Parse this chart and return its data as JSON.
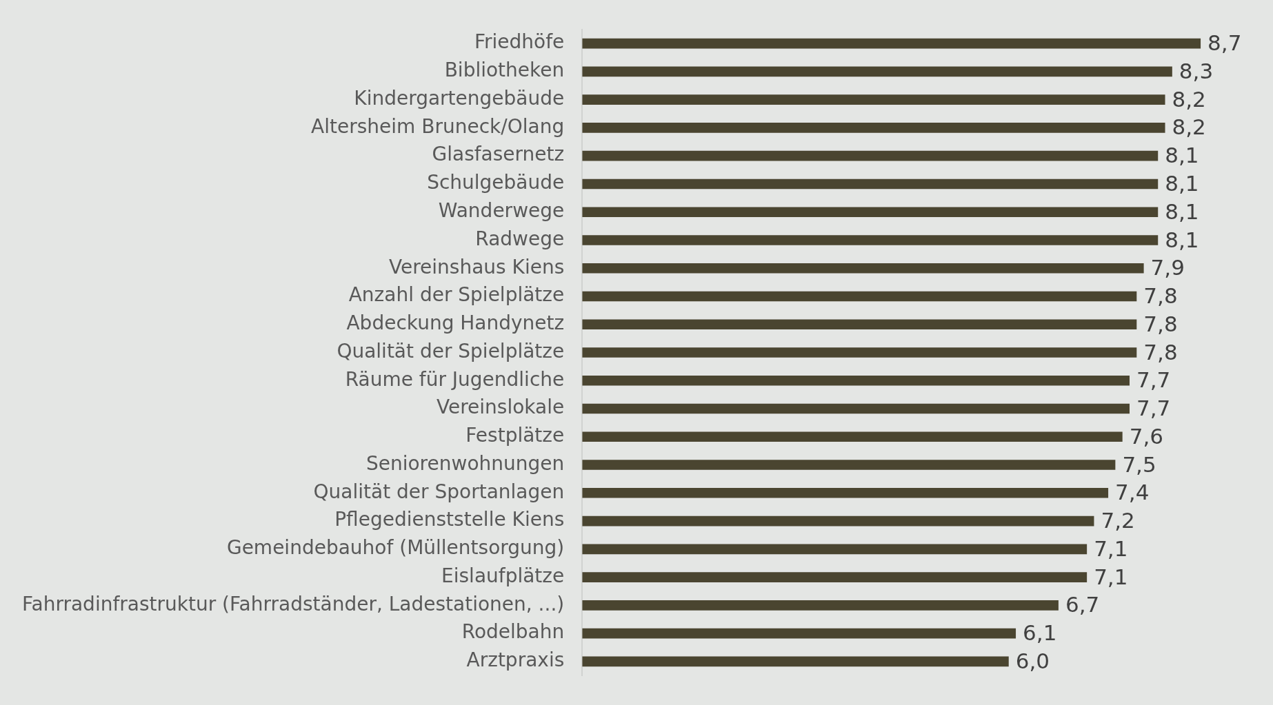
{
  "chart_data": {
    "type": "bar",
    "orientation": "horizontal",
    "categories": [
      "Friedhöfe",
      "Bibliotheken",
      "Kindergartengebäude",
      "Altersheim Bruneck/Olang",
      "Glasfasernetz",
      "Schulgebäude",
      "Wanderwege",
      "Radwege",
      "Vereinshaus Kiens",
      "Anzahl der Spielplätze",
      "Abdeckung Handynetz",
      "Qualität der Spielplätze",
      "Räume für Jugendliche",
      "Vereinslokale",
      "Festplätze",
      "Seniorenwohnungen",
      "Qualität der Sportanlagen",
      "Pflegedienststelle Kiens",
      "Gemeindebauhof (Müllentsorgung)",
      "Eislaufplätze",
      "Fahrradinfrastruktur (Fahrradständer, Ladestationen, ...)",
      "Rodelbahn",
      "Arztpraxis"
    ],
    "values": [
      8.7,
      8.3,
      8.2,
      8.2,
      8.1,
      8.1,
      8.1,
      8.1,
      7.9,
      7.8,
      7.8,
      7.8,
      7.7,
      7.7,
      7.6,
      7.5,
      7.4,
      7.2,
      7.1,
      7.1,
      6.7,
      6.1,
      6.0
    ],
    "value_labels": [
      "8,7",
      "8,3",
      "8,2",
      "8,2",
      "8,1",
      "8,1",
      "8,1",
      "8,1",
      "7,9",
      "7,8",
      "7,8",
      "7,8",
      "7,7",
      "7,7",
      "7,6",
      "7,5",
      "7,4",
      "7,2",
      "7,1",
      "7,1",
      "6,7",
      "6,1",
      "6,0"
    ],
    "color": "#4a4530",
    "grid": false,
    "legend": false
  }
}
